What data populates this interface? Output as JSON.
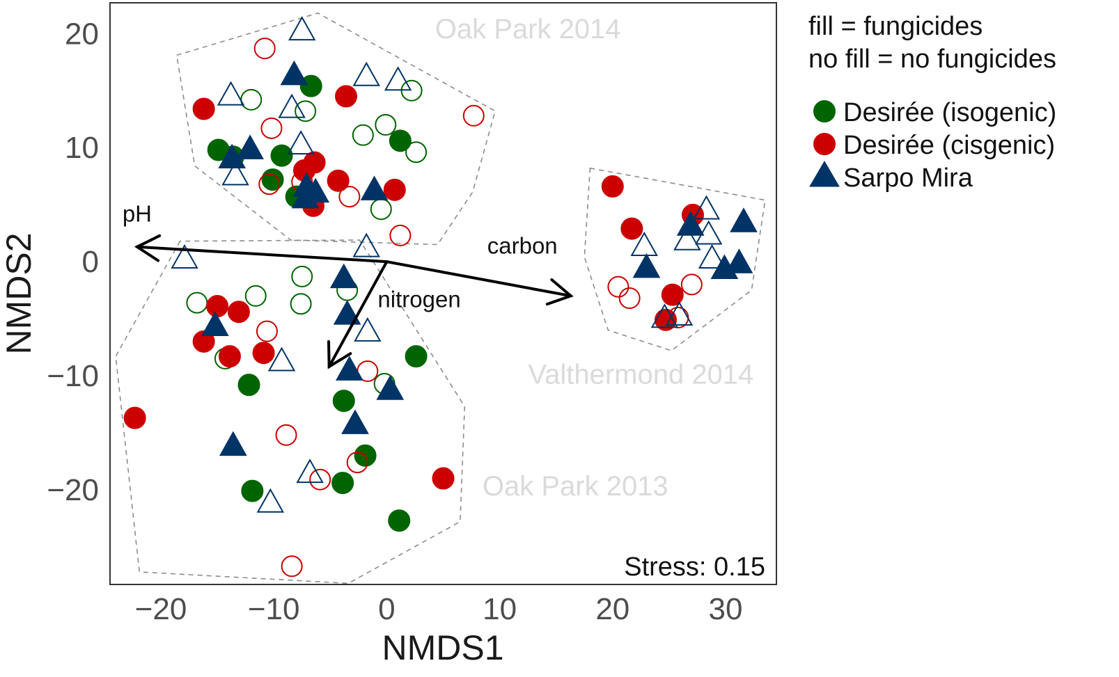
{
  "chart_data": {
    "type": "scatter",
    "title": "",
    "xlabel": "NMDS1",
    "ylabel": "NMDS2",
    "xlim": [
      -24.5,
      34.5
    ],
    "ylim": [
      -28.3,
      22.7
    ],
    "xticks": [
      -20,
      -10,
      0,
      10,
      20,
      30
    ],
    "yticks": [
      -20,
      -10,
      0,
      10,
      20
    ],
    "xtick_labels": [
      "−20",
      "−10",
      "0",
      "10",
      "20",
      "30"
    ],
    "ytick_labels": [
      "−20",
      "−10",
      "0",
      "10",
      "20"
    ],
    "grid": false,
    "legend": {
      "position": "top-right",
      "note_lines": [
        "fill = fungicides",
        "no fill = no fungicides"
      ],
      "entries": [
        {
          "label": "Desirée (isogenic)",
          "shape": "circle",
          "color": "#006400"
        },
        {
          "label": "Desirée (cisgenic)",
          "shape": "circle",
          "color": "#cc0000"
        },
        {
          "label": "Sarpo Mira",
          "shape": "triangle",
          "color": "#003366"
        }
      ]
    },
    "stress_label": "Stress: 0.15",
    "groups": [
      {
        "label": "Oak Park 2014",
        "label_at": [
          12.5,
          19.6
        ],
        "hull": [
          [
            -18.6,
            18.1
          ],
          [
            -6.1,
            21.8
          ],
          [
            9.6,
            13.2
          ],
          [
            7.6,
            6.1
          ],
          [
            4.5,
            1.5
          ],
          [
            -8.5,
            1.9
          ],
          [
            -17,
            8.4
          ]
        ]
      },
      {
        "label": "Valthermond 2014",
        "label_at": [
          22.5,
          -10.7
        ],
        "hull": [
          [
            18,
            8.2
          ],
          [
            33.5,
            5.4
          ],
          [
            32.3,
            -2.5
          ],
          [
            25.2,
            -7.8
          ],
          [
            19.6,
            -6
          ],
          [
            17.5,
            0.4
          ]
        ]
      },
      {
        "label": "Oak Park 2013",
        "label_at": [
          16.7,
          -20.5
        ],
        "hull": [
          [
            -18.3,
            1.8
          ],
          [
            -24,
            -8.3
          ],
          [
            -21.9,
            -27.2
          ],
          [
            -3.4,
            -28.2
          ],
          [
            6.5,
            -22.8
          ],
          [
            6.9,
            -12.7
          ],
          [
            -2.4,
            1.9
          ]
        ]
      }
    ],
    "vectors": [
      {
        "label": "pH",
        "end": [
          -22.1,
          1.3
        ],
        "label_at": [
          -23.4,
          3.5
        ]
      },
      {
        "label": "carbon",
        "end": [
          16.3,
          -3
        ],
        "label_at": [
          8.9,
          0.7
        ]
      },
      {
        "label": "nitrogen",
        "end": [
          -5.1,
          -9.2
        ],
        "label_at": [
          -0.8,
          -4
        ]
      }
    ],
    "series": [
      {
        "name": "Desirée (isogenic)",
        "shape": "circle",
        "color": "#006400",
        "points": [
          {
            "x": -6.7,
            "y": 15.4,
            "filled": true
          },
          {
            "x": -14.9,
            "y": 9.8,
            "filled": true
          },
          {
            "x": -13.6,
            "y": 9.2,
            "filled": true
          },
          {
            "x": -9.3,
            "y": 9.3,
            "filled": true
          },
          {
            "x": -10.1,
            "y": 7.2,
            "filled": true
          },
          {
            "x": -8,
            "y": 5.7,
            "filled": true
          },
          {
            "x": 1.2,
            "y": 10.6,
            "filled": true
          },
          {
            "x": -12,
            "y": 14.2,
            "filled": false
          },
          {
            "x": -7.2,
            "y": 13.2,
            "filled": false
          },
          {
            "x": -2.1,
            "y": 11.1,
            "filled": false
          },
          {
            "x": -0.1,
            "y": 12,
            "filled": false
          },
          {
            "x": 2.2,
            "y": 15,
            "filled": false
          },
          {
            "x": 2.6,
            "y": 9.6,
            "filled": false
          },
          {
            "x": -0.5,
            "y": 4.6,
            "filled": false
          },
          {
            "x": -7.5,
            "y": -1.3,
            "filled": false
          },
          {
            "x": -11.6,
            "y": -3,
            "filled": false
          },
          {
            "x": -16.8,
            "y": -3.6,
            "filled": false
          },
          {
            "x": -7.6,
            "y": -3.7,
            "filled": false
          },
          {
            "x": -3.5,
            "y": -2.5,
            "filled": false
          },
          {
            "x": -14.3,
            "y": -8.5,
            "filled": false
          },
          {
            "x": -0.2,
            "y": -10.7,
            "filled": false
          },
          {
            "x": -12.2,
            "y": -10.8,
            "filled": true
          },
          {
            "x": 2.6,
            "y": -8.3,
            "filled": true
          },
          {
            "x": -3.8,
            "y": -12.2,
            "filled": true
          },
          {
            "x": -1.9,
            "y": -17,
            "filled": true
          },
          {
            "x": -11.9,
            "y": -20.1,
            "filled": true
          },
          {
            "x": -3.9,
            "y": -19.4,
            "filled": true
          },
          {
            "x": 1.1,
            "y": -22.7,
            "filled": true
          }
        ]
      },
      {
        "name": "Desirée (cisgenic)",
        "shape": "circle",
        "color": "#cc0000",
        "points": [
          {
            "x": -16.2,
            "y": 13.4,
            "filled": true
          },
          {
            "x": -3.6,
            "y": 14.5,
            "filled": true
          },
          {
            "x": -6.4,
            "y": 8.7,
            "filled": true
          },
          {
            "x": -7.3,
            "y": 8,
            "filled": true
          },
          {
            "x": -4.3,
            "y": 7.1,
            "filled": true
          },
          {
            "x": -6.5,
            "y": 4.9,
            "filled": true
          },
          {
            "x": 0.7,
            "y": 6.3,
            "filled": true
          },
          {
            "x": -10.8,
            "y": 18.7,
            "filled": false
          },
          {
            "x": -10.2,
            "y": 11.7,
            "filled": false
          },
          {
            "x": -10.4,
            "y": 6.8,
            "filled": false
          },
          {
            "x": -7.5,
            "y": 7,
            "filled": false
          },
          {
            "x": -3.3,
            "y": 5.7,
            "filled": false
          },
          {
            "x": 7.7,
            "y": 12.8,
            "filled": false
          },
          {
            "x": 1.2,
            "y": 2.3,
            "filled": false
          },
          {
            "x": 20,
            "y": 6.6,
            "filled": true
          },
          {
            "x": 21.7,
            "y": 2.9,
            "filled": true
          },
          {
            "x": 27.1,
            "y": 4.1,
            "filled": true
          },
          {
            "x": 25.3,
            "y": -2.9,
            "filled": true
          },
          {
            "x": 24.7,
            "y": -5.1,
            "filled": true
          },
          {
            "x": 20.5,
            "y": -2.2,
            "filled": false
          },
          {
            "x": 21.5,
            "y": -3.2,
            "filled": false
          },
          {
            "x": 27,
            "y": -2,
            "filled": false
          },
          {
            "x": 25.8,
            "y": -4.9,
            "filled": false
          },
          {
            "x": -15,
            "y": -3.9,
            "filled": true
          },
          {
            "x": -13.1,
            "y": -4.4,
            "filled": true
          },
          {
            "x": -16.2,
            "y": -7,
            "filled": true
          },
          {
            "x": -13.9,
            "y": -8.3,
            "filled": true
          },
          {
            "x": -10.9,
            "y": -8,
            "filled": true
          },
          {
            "x": -10.6,
            "y": -6.1,
            "filled": false
          },
          {
            "x": -1.7,
            "y": -9.6,
            "filled": false
          },
          {
            "x": -22.3,
            "y": -13.7,
            "filled": true
          },
          {
            "x": 5,
            "y": -19,
            "filled": true
          },
          {
            "x": -8.9,
            "y": -15.2,
            "filled": false
          },
          {
            "x": -2.6,
            "y": -17.6,
            "filled": false
          },
          {
            "x": -5.9,
            "y": -19.1,
            "filled": false
          },
          {
            "x": -8.4,
            "y": -26.7,
            "filled": false
          }
        ]
      },
      {
        "name": "Sarpo Mira",
        "shape": "triangle",
        "color": "#003366",
        "points": [
          {
            "x": -8.2,
            "y": 16.3,
            "filled": true
          },
          {
            "x": -12.1,
            "y": 9.8,
            "filled": true
          },
          {
            "x": -13.7,
            "y": 9,
            "filled": true
          },
          {
            "x": -7.1,
            "y": 6.5,
            "filled": true
          },
          {
            "x": -6.3,
            "y": 6,
            "filled": true
          },
          {
            "x": -7.2,
            "y": 5.5,
            "filled": true
          },
          {
            "x": -1.1,
            "y": 6.2,
            "filled": true
          },
          {
            "x": -7.5,
            "y": 20.2,
            "filled": false
          },
          {
            "x": -1.8,
            "y": 16.2,
            "filled": false
          },
          {
            "x": 1,
            "y": 15.8,
            "filled": false
          },
          {
            "x": -13.8,
            "y": 14.5,
            "filled": false
          },
          {
            "x": -8.4,
            "y": 13.4,
            "filled": false
          },
          {
            "x": -7.6,
            "y": 10.2,
            "filled": false
          },
          {
            "x": -13.4,
            "y": 7.5,
            "filled": false
          },
          {
            "x": 23,
            "y": -0.6,
            "filled": true
          },
          {
            "x": 26.9,
            "y": 3.1,
            "filled": true
          },
          {
            "x": 31.6,
            "y": 3.4,
            "filled": true
          },
          {
            "x": 29.9,
            "y": -0.7,
            "filled": true
          },
          {
            "x": 31.2,
            "y": -0.2,
            "filled": true
          },
          {
            "x": 28.3,
            "y": 4.5,
            "filled": false
          },
          {
            "x": 28.5,
            "y": 2.3,
            "filled": false
          },
          {
            "x": 22.8,
            "y": 1.3,
            "filled": false
          },
          {
            "x": 26.6,
            "y": 1.8,
            "filled": false
          },
          {
            "x": 28.8,
            "y": 0.2,
            "filled": false
          },
          {
            "x": 24.6,
            "y": -5,
            "filled": false
          },
          {
            "x": 25.9,
            "y": -4.8,
            "filled": false
          },
          {
            "x": -17.9,
            "y": 0.2,
            "filled": false
          },
          {
            "x": -1.8,
            "y": 1.2,
            "filled": false
          },
          {
            "x": -3.8,
            "y": -1.5,
            "filled": true
          },
          {
            "x": -3.5,
            "y": -4.7,
            "filled": true
          },
          {
            "x": -15.2,
            "y": -5.7,
            "filled": true
          },
          {
            "x": -3.3,
            "y": -9.6,
            "filled": true
          },
          {
            "x": 0.3,
            "y": -11.3,
            "filled": true
          },
          {
            "x": -2.8,
            "y": -14.3,
            "filled": true
          },
          {
            "x": -13.6,
            "y": -16.2,
            "filled": true
          },
          {
            "x": -1.7,
            "y": -6.2,
            "filled": false
          },
          {
            "x": -9.3,
            "y": -8.8,
            "filled": false
          },
          {
            "x": -6.8,
            "y": -18.6,
            "filled": false
          },
          {
            "x": -10.3,
            "y": -21.2,
            "filled": false
          }
        ]
      }
    ]
  }
}
